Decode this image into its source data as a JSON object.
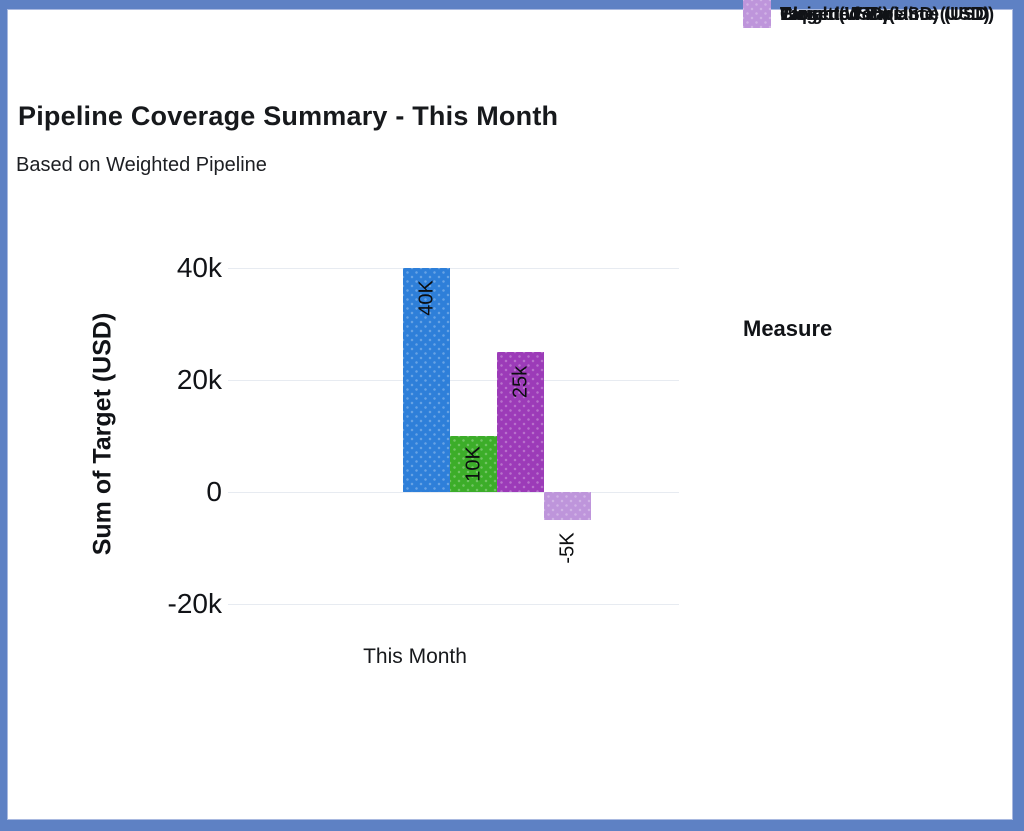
{
  "window": {
    "frame_color": "#5e81c4",
    "card_background": "#ffffff"
  },
  "chart_data": {
    "type": "bar",
    "title": "Pipeline Coverage Summary - This Month",
    "subtitle": "Based on Weighted Pipeline",
    "categories": [
      "This Month"
    ],
    "series": [
      {
        "name": "Target (USD)",
        "values": [
          40000
        ],
        "data_label": "40K",
        "color": "#2e7fd9"
      },
      {
        "name": "Closed Won (USD)",
        "values": [
          10000
        ],
        "data_label": "10K",
        "color": "#3cad29"
      },
      {
        "name": "Weighted Pipeline (USD)",
        "values": [
          25000
        ],
        "data_label": "25k",
        "color": "#9c3bb8"
      },
      {
        "name": "Expected Variance (USD)",
        "values": [
          -5000
        ],
        "data_label": "-5K",
        "color": "#be95db"
      }
    ],
    "xlabel": "This Month",
    "ylabel": "Sum of Target (USD)",
    "ylim": [
      -25000,
      45000
    ],
    "yticks": [
      {
        "label": "40k",
        "value": 40000
      },
      {
        "label": "20k",
        "value": 20000
      },
      {
        "label": "0",
        "value": 0
      },
      {
        "label": "-20k",
        "value": -20000
      }
    ],
    "grid": true,
    "data_labels_rotated": true,
    "legend": {
      "title": "Measure",
      "position": "right"
    }
  }
}
